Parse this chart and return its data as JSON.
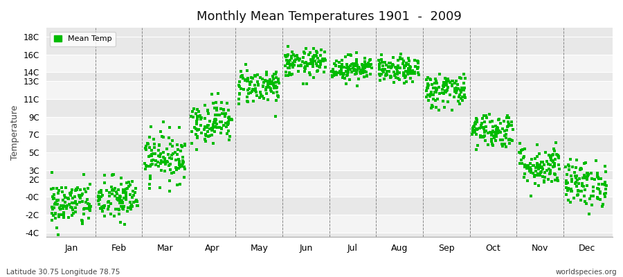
{
  "title": "Monthly Mean Temperatures 1901  -  2009",
  "ylabel": "Temperature",
  "subtitle_left": "Latitude 30.75 Longitude 78.75",
  "subtitle_right": "worldspecies.org",
  "legend_label": "Mean Temp",
  "dot_color": "#00bb00",
  "bg_color": "#ffffff",
  "band_colors": [
    "#e8e8e8",
    "#f4f4f4"
  ],
  "ytick_labels": [
    "18C",
    "16C",
    "14C",
    "13C",
    "11C",
    "9C",
    "7C",
    "5C",
    "3C",
    "2C",
    "-0C",
    "-2C",
    "-4C"
  ],
  "ytick_values": [
    18,
    16,
    14,
    13,
    11,
    9,
    7,
    5,
    3,
    2,
    0,
    -2,
    -4
  ],
  "month_names": [
    "Jan",
    "Feb",
    "Mar",
    "Apr",
    "May",
    "Jun",
    "Jul",
    "Aug",
    "Sep",
    "Oct",
    "Nov",
    "Dec"
  ],
  "ylim": [
    -4.5,
    19.0
  ],
  "num_years": 109,
  "seed": 42,
  "mean_temps": [
    -0.8,
    -0.3,
    4.5,
    8.5,
    12.5,
    15.0,
    14.5,
    14.2,
    12.0,
    7.5,
    3.5,
    1.5
  ],
  "stds": [
    1.3,
    1.3,
    1.4,
    1.2,
    1.0,
    0.8,
    0.7,
    0.7,
    1.0,
    1.0,
    1.2,
    1.3
  ],
  "dashed_line_color": "#888888",
  "vline_positions": [
    1,
    2,
    3,
    4,
    5,
    6,
    7,
    8,
    9,
    10,
    11
  ]
}
